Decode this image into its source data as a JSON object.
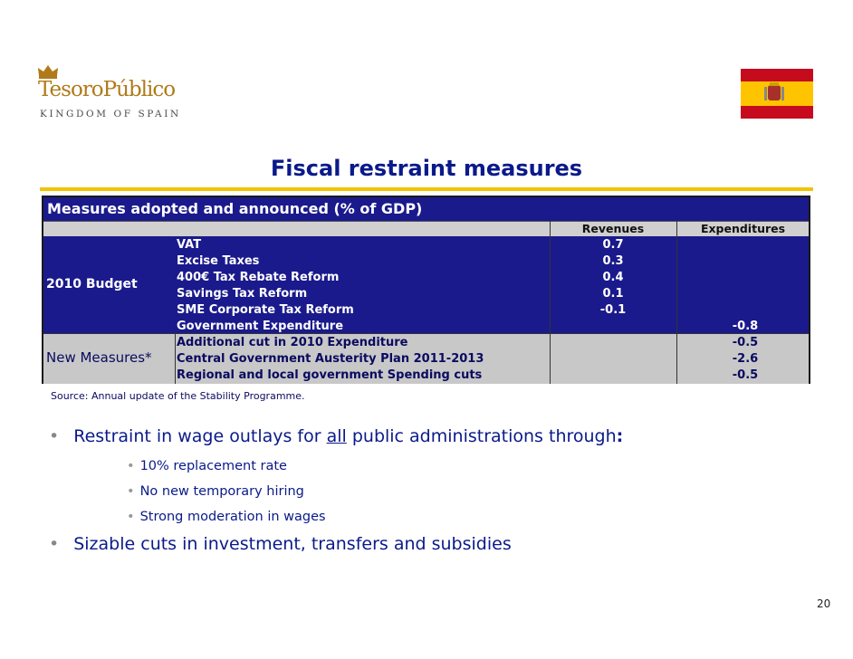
{
  "logo": {
    "name": "TesoroPúblico",
    "tagline": "KINGDOM OF SPAIN"
  },
  "flag": {
    "name": "spain-flag-icon",
    "colors": [
      "#c60b1e",
      "#ffc400"
    ]
  },
  "title": "Fiscal restraint measures",
  "table": {
    "header": "Measures adopted and announced (%  of GDP)",
    "columns": {
      "revenues": "Revenues",
      "expenditures": "Expenditures"
    },
    "groups": {
      "budget": "2010 Budget",
      "new": "New Measures*"
    },
    "rows": [
      {
        "label": "VAT",
        "revenues": "0.7",
        "expenditures": ""
      },
      {
        "label": "Excise Taxes",
        "revenues": "0.3",
        "expenditures": ""
      },
      {
        "label": "400€ Tax Rebate Reform",
        "revenues": "0.4",
        "expenditures": ""
      },
      {
        "label": "Savings Tax Reform",
        "revenues": "0.1",
        "expenditures": ""
      },
      {
        "label": "SME Corporate Tax Reform",
        "revenues": "-0.1",
        "expenditures": ""
      },
      {
        "label": "Government Expenditure",
        "revenues": "",
        "expenditures": "-0.8"
      },
      {
        "label": "Additional cut in 2010 Expenditure",
        "revenues": "",
        "expenditures": "-0.5"
      },
      {
        "label": "Central Government Austerity Plan 2011-2013",
        "revenues": "",
        "expenditures": "-2.6"
      },
      {
        "label": "Regional and local government Spending cuts",
        "revenues": "",
        "expenditures": "-0.5"
      }
    ]
  },
  "source": "Source: Annual update of the Stability Programme.",
  "bullets": {
    "b1_pre": "Restraint in wage outlays for ",
    "b1_under": "all",
    "b1_post": " public administrations through",
    "b1_colon": ":",
    "sub": [
      "10%  replacement rate",
      "No new temporary hiring",
      "Strong moderation in wages"
    ],
    "b2": "Sizable cuts in investment, transfers and subsidies",
    "dot": "•"
  },
  "page_number": "20"
}
